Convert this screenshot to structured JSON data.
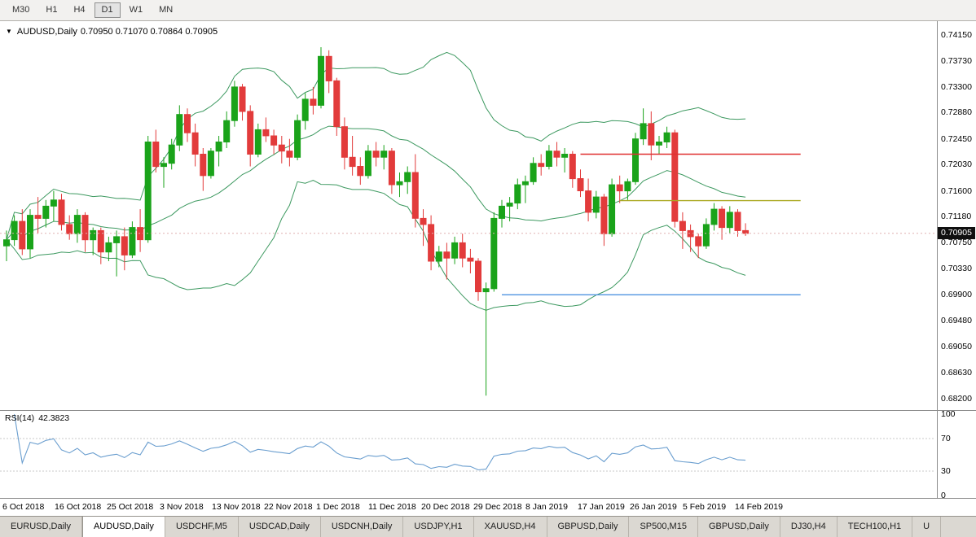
{
  "toolbar": {
    "timeframes": [
      {
        "label": "M30",
        "active": false
      },
      {
        "label": "H1",
        "active": false
      },
      {
        "label": "H4",
        "active": false
      },
      {
        "label": "D1",
        "active": true
      },
      {
        "label": "W1",
        "active": false
      },
      {
        "label": "MN",
        "active": false
      }
    ]
  },
  "chart": {
    "title_symbol": "AUDUSD,Daily",
    "title_ohlc": "0.70950 0.71070 0.70864 0.70905",
    "current_price": "0.70905",
    "price_axis_labels": [
      "0.74150",
      "0.73730",
      "0.73300",
      "0.72880",
      "0.72450",
      "0.72030",
      "0.71600",
      "0.71180",
      "0.70750",
      "0.70330",
      "0.69900",
      "0.69480",
      "0.69050",
      "0.68630",
      "0.68200"
    ],
    "date_labels": [
      "6 Oct 2018",
      "16 Oct 2018",
      "25 Oct 2018",
      "3 Nov 2018",
      "13 Nov 2018",
      "22 Nov 2018",
      "1 Dec 2018",
      "11 Dec 2018",
      "20 Dec 2018",
      "29 Dec 2018",
      "8 Jan 2019",
      "17 Jan 2019",
      "26 Jan 2019",
      "5 Feb 2019",
      "14 Feb 2019"
    ],
    "colors": {
      "bull": "#1aa31a",
      "bear": "#e23b3b",
      "bands": "#3d9960",
      "rsi_line": "#6a9ecf",
      "hline_red": "#e03030",
      "hline_olive": "#aaa820",
      "hline_blue": "#4f94e0"
    },
    "hlines": [
      {
        "name": "resistance-hline",
        "price": 0.722,
        "color_key": "hline_red",
        "from_index": 73,
        "to_index": 101
      },
      {
        "name": "mid-hline",
        "price": 0.7144,
        "color_key": "hline_olive",
        "from_index": 78,
        "to_index": 101
      },
      {
        "name": "support-hline",
        "price": 0.699,
        "color_key": "hline_blue",
        "from_index": 63,
        "to_index": 101
      }
    ]
  },
  "chart_data": {
    "type": "candlestick",
    "title": "AUDUSD,Daily",
    "symbol": "AUDUSD",
    "timeframe": "Daily",
    "y_axis": {
      "min": 0.682,
      "max": 0.7415
    },
    "x_range": [
      "6 Oct 2018",
      "19 Feb 2019"
    ],
    "indicators": [
      {
        "name": "Bollinger Bands",
        "period": 20,
        "deviation": 2
      },
      {
        "name": "RSI",
        "period": 14,
        "value": 42.3823
      }
    ],
    "ohlc": [
      [
        "2018-10-08",
        0.707,
        0.7095,
        0.7045,
        0.708
      ],
      [
        "2018-10-09",
        0.708,
        0.712,
        0.707,
        0.711
      ],
      [
        "2018-10-10",
        0.711,
        0.713,
        0.7055,
        0.7065
      ],
      [
        "2018-10-11",
        0.7065,
        0.713,
        0.705,
        0.712
      ],
      [
        "2018-10-12",
        0.712,
        0.715,
        0.709,
        0.7115
      ],
      [
        "2018-10-15",
        0.7115,
        0.7145,
        0.71,
        0.7135
      ],
      [
        "2018-10-16",
        0.7135,
        0.716,
        0.711,
        0.7145
      ],
      [
        "2018-10-17",
        0.7145,
        0.7155,
        0.7095,
        0.7105
      ],
      [
        "2018-10-18",
        0.7105,
        0.712,
        0.708,
        0.709
      ],
      [
        "2018-10-19",
        0.709,
        0.713,
        0.7075,
        0.712
      ],
      [
        "2018-10-22",
        0.712,
        0.7125,
        0.706,
        0.708
      ],
      [
        "2018-10-23",
        0.708,
        0.71,
        0.7055,
        0.7095
      ],
      [
        "2018-10-24",
        0.7095,
        0.71,
        0.704,
        0.706
      ],
      [
        "2018-10-25",
        0.706,
        0.7085,
        0.7045,
        0.7075
      ],
      [
        "2018-10-26",
        0.7075,
        0.7095,
        0.702,
        0.7085
      ],
      [
        "2018-10-29",
        0.7085,
        0.71,
        0.703,
        0.7055
      ],
      [
        "2018-10-30",
        0.7055,
        0.711,
        0.705,
        0.71
      ],
      [
        "2018-10-31",
        0.71,
        0.713,
        0.706,
        0.708
      ],
      [
        "2018-11-01",
        0.708,
        0.725,
        0.7075,
        0.724
      ],
      [
        "2018-11-02",
        0.724,
        0.726,
        0.719,
        0.72
      ],
      [
        "2018-11-05",
        0.72,
        0.7215,
        0.7165,
        0.7205
      ],
      [
        "2018-11-06",
        0.7205,
        0.7245,
        0.7195,
        0.7235
      ],
      [
        "2018-11-07",
        0.7235,
        0.73,
        0.7225,
        0.7285
      ],
      [
        "2018-11-08",
        0.7285,
        0.7295,
        0.724,
        0.7255
      ],
      [
        "2018-11-09",
        0.7255,
        0.727,
        0.72,
        0.722
      ],
      [
        "2018-11-12",
        0.722,
        0.723,
        0.716,
        0.7185
      ],
      [
        "2018-11-13",
        0.7185,
        0.723,
        0.718,
        0.7225
      ],
      [
        "2018-11-14",
        0.7225,
        0.725,
        0.72,
        0.724
      ],
      [
        "2018-11-15",
        0.724,
        0.729,
        0.723,
        0.7275
      ],
      [
        "2018-11-16",
        0.7275,
        0.734,
        0.7265,
        0.733
      ],
      [
        "2018-11-19",
        0.733,
        0.7335,
        0.7275,
        0.729
      ],
      [
        "2018-11-20",
        0.729,
        0.73,
        0.72,
        0.722
      ],
      [
        "2018-11-21",
        0.722,
        0.727,
        0.7215,
        0.726
      ],
      [
        "2018-11-22",
        0.726,
        0.728,
        0.724,
        0.725
      ],
      [
        "2018-11-23",
        0.725,
        0.726,
        0.722,
        0.7235
      ],
      [
        "2018-11-26",
        0.7235,
        0.725,
        0.7205,
        0.7225
      ],
      [
        "2018-11-27",
        0.7225,
        0.7245,
        0.72,
        0.7215
      ],
      [
        "2018-11-28",
        0.7215,
        0.7285,
        0.721,
        0.7275
      ],
      [
        "2018-11-29",
        0.7275,
        0.732,
        0.726,
        0.731
      ],
      [
        "2018-11-30",
        0.731,
        0.733,
        0.7285,
        0.73
      ],
      [
        "2018-12-03",
        0.73,
        0.7395,
        0.7295,
        0.738
      ],
      [
        "2018-12-04",
        0.738,
        0.739,
        0.732,
        0.734
      ],
      [
        "2018-12-05",
        0.734,
        0.7345,
        0.725,
        0.7265
      ],
      [
        "2018-12-06",
        0.7265,
        0.728,
        0.7195,
        0.7215
      ],
      [
        "2018-12-07",
        0.7215,
        0.725,
        0.7185,
        0.72
      ],
      [
        "2018-12-10",
        0.72,
        0.7215,
        0.717,
        0.7185
      ],
      [
        "2018-12-11",
        0.7185,
        0.7235,
        0.718,
        0.7225
      ],
      [
        "2018-12-12",
        0.7225,
        0.724,
        0.72,
        0.7215
      ],
      [
        "2018-12-13",
        0.7215,
        0.7235,
        0.7195,
        0.7225
      ],
      [
        "2018-12-14",
        0.7225,
        0.723,
        0.7155,
        0.717
      ],
      [
        "2018-12-17",
        0.717,
        0.719,
        0.715,
        0.7175
      ],
      [
        "2018-12-18",
        0.7175,
        0.72,
        0.7155,
        0.719
      ],
      [
        "2018-12-19",
        0.719,
        0.722,
        0.71,
        0.7115
      ],
      [
        "2018-12-20",
        0.7115,
        0.713,
        0.707,
        0.7105
      ],
      [
        "2018-12-21",
        0.7105,
        0.712,
        0.703,
        0.7045
      ],
      [
        "2018-12-24",
        0.7045,
        0.707,
        0.7035,
        0.706
      ],
      [
        "2018-12-26",
        0.706,
        0.7075,
        0.7015,
        0.705
      ],
      [
        "2018-12-27",
        0.705,
        0.7085,
        0.704,
        0.7075
      ],
      [
        "2018-12-28",
        0.7075,
        0.709,
        0.7035,
        0.705
      ],
      [
        "2018-12-31",
        0.705,
        0.7065,
        0.7025,
        0.7045
      ],
      [
        "2019-01-02",
        0.7045,
        0.705,
        0.698,
        0.6995
      ],
      [
        "2019-01-03",
        0.6995,
        0.701,
        0.6825,
        0.7
      ],
      [
        "2019-01-04",
        0.7,
        0.7125,
        0.6995,
        0.7115
      ],
      [
        "2019-01-07",
        0.7115,
        0.7145,
        0.71,
        0.7135
      ],
      [
        "2019-01-08",
        0.7135,
        0.715,
        0.711,
        0.714
      ],
      [
        "2019-01-09",
        0.714,
        0.718,
        0.713,
        0.717
      ],
      [
        "2019-01-10",
        0.717,
        0.7185,
        0.714,
        0.7175
      ],
      [
        "2019-01-11",
        0.7175,
        0.7215,
        0.717,
        0.7205
      ],
      [
        "2019-01-14",
        0.7205,
        0.722,
        0.7185,
        0.72
      ],
      [
        "2019-01-15",
        0.72,
        0.7235,
        0.7195,
        0.7225
      ],
      [
        "2019-01-16",
        0.7225,
        0.724,
        0.72,
        0.7215
      ],
      [
        "2019-01-17",
        0.7215,
        0.723,
        0.719,
        0.722
      ],
      [
        "2019-01-18",
        0.722,
        0.7225,
        0.7165,
        0.718
      ],
      [
        "2019-01-21",
        0.718,
        0.7195,
        0.715,
        0.716
      ],
      [
        "2019-01-22",
        0.716,
        0.718,
        0.711,
        0.7125
      ],
      [
        "2019-01-23",
        0.7125,
        0.716,
        0.7115,
        0.715
      ],
      [
        "2019-01-24",
        0.715,
        0.7155,
        0.707,
        0.709
      ],
      [
        "2019-01-25",
        0.709,
        0.718,
        0.7085,
        0.717
      ],
      [
        "2019-01-28",
        0.717,
        0.7185,
        0.714,
        0.716
      ],
      [
        "2019-01-29",
        0.716,
        0.718,
        0.7145,
        0.7175
      ],
      [
        "2019-01-30",
        0.7175,
        0.7255,
        0.717,
        0.7245
      ],
      [
        "2019-01-31",
        0.7245,
        0.7295,
        0.7235,
        0.727
      ],
      [
        "2019-02-01",
        0.727,
        0.729,
        0.721,
        0.7235
      ],
      [
        "2019-02-04",
        0.7235,
        0.725,
        0.722,
        0.724
      ],
      [
        "2019-02-05",
        0.724,
        0.7265,
        0.723,
        0.7255
      ],
      [
        "2019-02-06",
        0.7255,
        0.726,
        0.71,
        0.711
      ],
      [
        "2019-02-07",
        0.711,
        0.7125,
        0.7065,
        0.7095
      ],
      [
        "2019-02-08",
        0.7095,
        0.7105,
        0.706,
        0.7085
      ],
      [
        "2019-02-11",
        0.7085,
        0.709,
        0.705,
        0.707
      ],
      [
        "2019-02-12",
        0.707,
        0.7115,
        0.7065,
        0.7105
      ],
      [
        "2019-02-13",
        0.7105,
        0.714,
        0.7095,
        0.713
      ],
      [
        "2019-02-14",
        0.713,
        0.7135,
        0.708,
        0.71
      ],
      [
        "2019-02-15",
        0.71,
        0.7135,
        0.709,
        0.7125
      ],
      [
        "2019-02-18",
        0.7125,
        0.713,
        0.7085,
        0.7095
      ],
      [
        "2019-02-19",
        0.7095,
        0.7107,
        0.70864,
        0.70905
      ]
    ]
  },
  "rsi_panel": {
    "label": "RSI(14)",
    "value": "42.3823",
    "axis_labels": [
      "100",
      "70",
      "30",
      "0"
    ],
    "levels": [
      70,
      30
    ]
  },
  "tabs": [
    {
      "label": "EURUSD,Daily",
      "active": false
    },
    {
      "label": "AUDUSD,Daily",
      "active": true
    },
    {
      "label": "USDCHF,M5",
      "active": false
    },
    {
      "label": "USDCAD,Daily",
      "active": false
    },
    {
      "label": "USDCNH,Daily",
      "active": false
    },
    {
      "label": "USDJPY,H1",
      "active": false
    },
    {
      "label": "XAUUSD,H4",
      "active": false
    },
    {
      "label": "GBPUSD,Daily",
      "active": false
    },
    {
      "label": "SP500,M15",
      "active": false
    },
    {
      "label": "GBPUSD,Daily",
      "active": false
    },
    {
      "label": "DJ30,H4",
      "active": false
    },
    {
      "label": "TECH100,H1",
      "active": false
    },
    {
      "label": "U",
      "active": false
    }
  ]
}
